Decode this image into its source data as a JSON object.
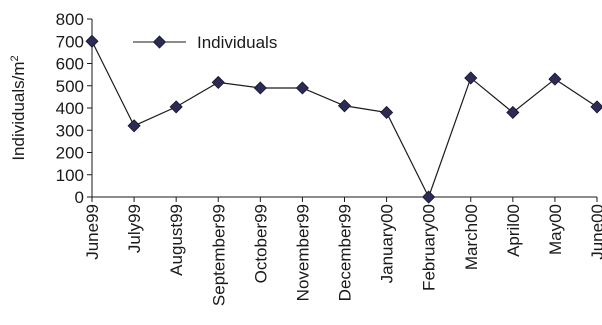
{
  "chart_data": {
    "type": "line",
    "title": "",
    "xlabel": "",
    "ylabel": "Individuals/m",
    "ylabel_superscript": "2",
    "ylim": [
      0,
      800
    ],
    "yticks": [
      0,
      100,
      200,
      300,
      400,
      500,
      600,
      700,
      800
    ],
    "categories": [
      "June99",
      "July99",
      "August99",
      "September99",
      "October99",
      "November99",
      "December99",
      "January00",
      "February00",
      "March00",
      "April00",
      "May00",
      "June00"
    ],
    "series": [
      {
        "name": "Individuals",
        "marker": "diamond",
        "color": "#2b2b55",
        "values": [
          700,
          320,
          405,
          515,
          490,
          490,
          410,
          380,
          0,
          535,
          380,
          530,
          405
        ]
      }
    ],
    "legend": "top-left",
    "grid": false
  }
}
